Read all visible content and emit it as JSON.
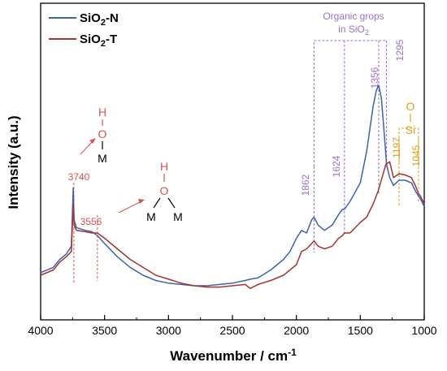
{
  "chart_data": {
    "type": "line",
    "title": "",
    "xlabel": "Wavenumber / cm",
    "xlabel_sup": "-1",
    "ylabel": "Intensity (a.u.)",
    "xlim": [
      4000,
      1000
    ],
    "ylim": [
      0,
      1
    ],
    "x_ticks": [
      "4000",
      "3500",
      "3000",
      "2500",
      "2000",
      "1500",
      "1000"
    ],
    "y_ticks_shown": false,
    "legend_position": "top-left",
    "series": [
      {
        "name": "SiO2-N",
        "name_main": "SiO",
        "name_sub": "2",
        "name_tail": "-N",
        "color": "#3d62b3",
        "points": [
          [
            4000,
            0.09
          ],
          [
            3900,
            0.11
          ],
          [
            3850,
            0.14
          ],
          [
            3800,
            0.16
          ],
          [
            3760,
            0.19
          ],
          [
            3745,
            0.41
          ],
          [
            3738,
            0.29
          ],
          [
            3720,
            0.26
          ],
          [
            3650,
            0.25
          ],
          [
            3600,
            0.245
          ],
          [
            3556,
            0.23
          ],
          [
            3500,
            0.2
          ],
          [
            3400,
            0.15
          ],
          [
            3300,
            0.11
          ],
          [
            3200,
            0.08
          ],
          [
            3100,
            0.06
          ],
          [
            3000,
            0.05
          ],
          [
            2900,
            0.045
          ],
          [
            2800,
            0.04
          ],
          [
            2700,
            0.04
          ],
          [
            2600,
            0.045
          ],
          [
            2500,
            0.05
          ],
          [
            2400,
            0.06
          ],
          [
            2360,
            0.065
          ],
          [
            2300,
            0.07
          ],
          [
            2200,
            0.1
          ],
          [
            2100,
            0.14
          ],
          [
            2050,
            0.17
          ],
          [
            2000,
            0.22
          ],
          [
            1960,
            0.25
          ],
          [
            1920,
            0.24
          ],
          [
            1880,
            0.29
          ],
          [
            1862,
            0.3
          ],
          [
            1830,
            0.27
          ],
          [
            1780,
            0.25
          ],
          [
            1720,
            0.27
          ],
          [
            1670,
            0.31
          ],
          [
            1640,
            0.33
          ],
          [
            1624,
            0.33
          ],
          [
            1580,
            0.36
          ],
          [
            1500,
            0.43
          ],
          [
            1450,
            0.55
          ],
          [
            1400,
            0.72
          ],
          [
            1375,
            0.78
          ],
          [
            1356,
            0.8
          ],
          [
            1335,
            0.75
          ],
          [
            1310,
            0.6
          ],
          [
            1295,
            0.5
          ],
          [
            1270,
            0.45
          ],
          [
            1240,
            0.42
          ],
          [
            1220,
            0.43
          ],
          [
            1197,
            0.44
          ],
          [
            1150,
            0.44
          ],
          [
            1100,
            0.43
          ],
          [
            1070,
            0.4
          ],
          [
            1045,
            0.38
          ],
          [
            1030,
            0.37
          ],
          [
            1010,
            0.35
          ],
          [
            1000,
            0.34
          ]
        ]
      },
      {
        "name": "SiO2-T",
        "name_main": "SiO",
        "name_sub": "2",
        "name_tail": "-T",
        "color": "#a43530",
        "points": [
          [
            4000,
            0.08
          ],
          [
            3900,
            0.1
          ],
          [
            3850,
            0.13
          ],
          [
            3800,
            0.15
          ],
          [
            3760,
            0.17
          ],
          [
            3745,
            0.35
          ],
          [
            3738,
            0.27
          ],
          [
            3720,
            0.25
          ],
          [
            3650,
            0.245
          ],
          [
            3600,
            0.24
          ],
          [
            3556,
            0.24
          ],
          [
            3500,
            0.22
          ],
          [
            3400,
            0.18
          ],
          [
            3300,
            0.14
          ],
          [
            3200,
            0.11
          ],
          [
            3100,
            0.08
          ],
          [
            3000,
            0.065
          ],
          [
            2900,
            0.05
          ],
          [
            2800,
            0.04
          ],
          [
            2700,
            0.035
          ],
          [
            2600,
            0.035
          ],
          [
            2500,
            0.04
          ],
          [
            2400,
            0.045
          ],
          [
            2360,
            0.03
          ],
          [
            2300,
            0.045
          ],
          [
            2200,
            0.06
          ],
          [
            2100,
            0.08
          ],
          [
            2050,
            0.1
          ],
          [
            2000,
            0.12
          ],
          [
            1960,
            0.17
          ],
          [
            1920,
            0.18
          ],
          [
            1880,
            0.2
          ],
          [
            1862,
            0.21
          ],
          [
            1830,
            0.19
          ],
          [
            1780,
            0.18
          ],
          [
            1720,
            0.19
          ],
          [
            1670,
            0.22
          ],
          [
            1640,
            0.23
          ],
          [
            1624,
            0.24
          ],
          [
            1580,
            0.24
          ],
          [
            1500,
            0.28
          ],
          [
            1450,
            0.3
          ],
          [
            1400,
            0.35
          ],
          [
            1360,
            0.4
          ],
          [
            1330,
            0.45
          ],
          [
            1300,
            0.5
          ],
          [
            1270,
            0.51
          ],
          [
            1240,
            0.45
          ],
          [
            1210,
            0.46
          ],
          [
            1197,
            0.465
          ],
          [
            1150,
            0.46
          ],
          [
            1100,
            0.45
          ],
          [
            1070,
            0.42
          ],
          [
            1045,
            0.39
          ],
          [
            1030,
            0.38
          ],
          [
            1010,
            0.36
          ],
          [
            1000,
            0.35
          ]
        ]
      }
    ],
    "annotations": {
      "bands": [
        "3740",
        "3556",
        "1862",
        "1624",
        "1356",
        "1295",
        "1197",
        "1045"
      ],
      "organic_group": {
        "text_line1": "Organic grops",
        "text_line2_main": "in SiO",
        "text_line2_sub": "2"
      },
      "si_o": {
        "top": "O",
        "bottom": "Si"
      },
      "oh_single": {
        "h": "H",
        "o": "O",
        "m": "M"
      },
      "oh_double": {
        "h": "H",
        "o": "O",
        "m1": "M",
        "m2": "M"
      }
    },
    "colors": {
      "axis": "#000000",
      "organic": "#9b6fd1",
      "sio": "#e0a020",
      "oh": "#d9534f"
    }
  }
}
